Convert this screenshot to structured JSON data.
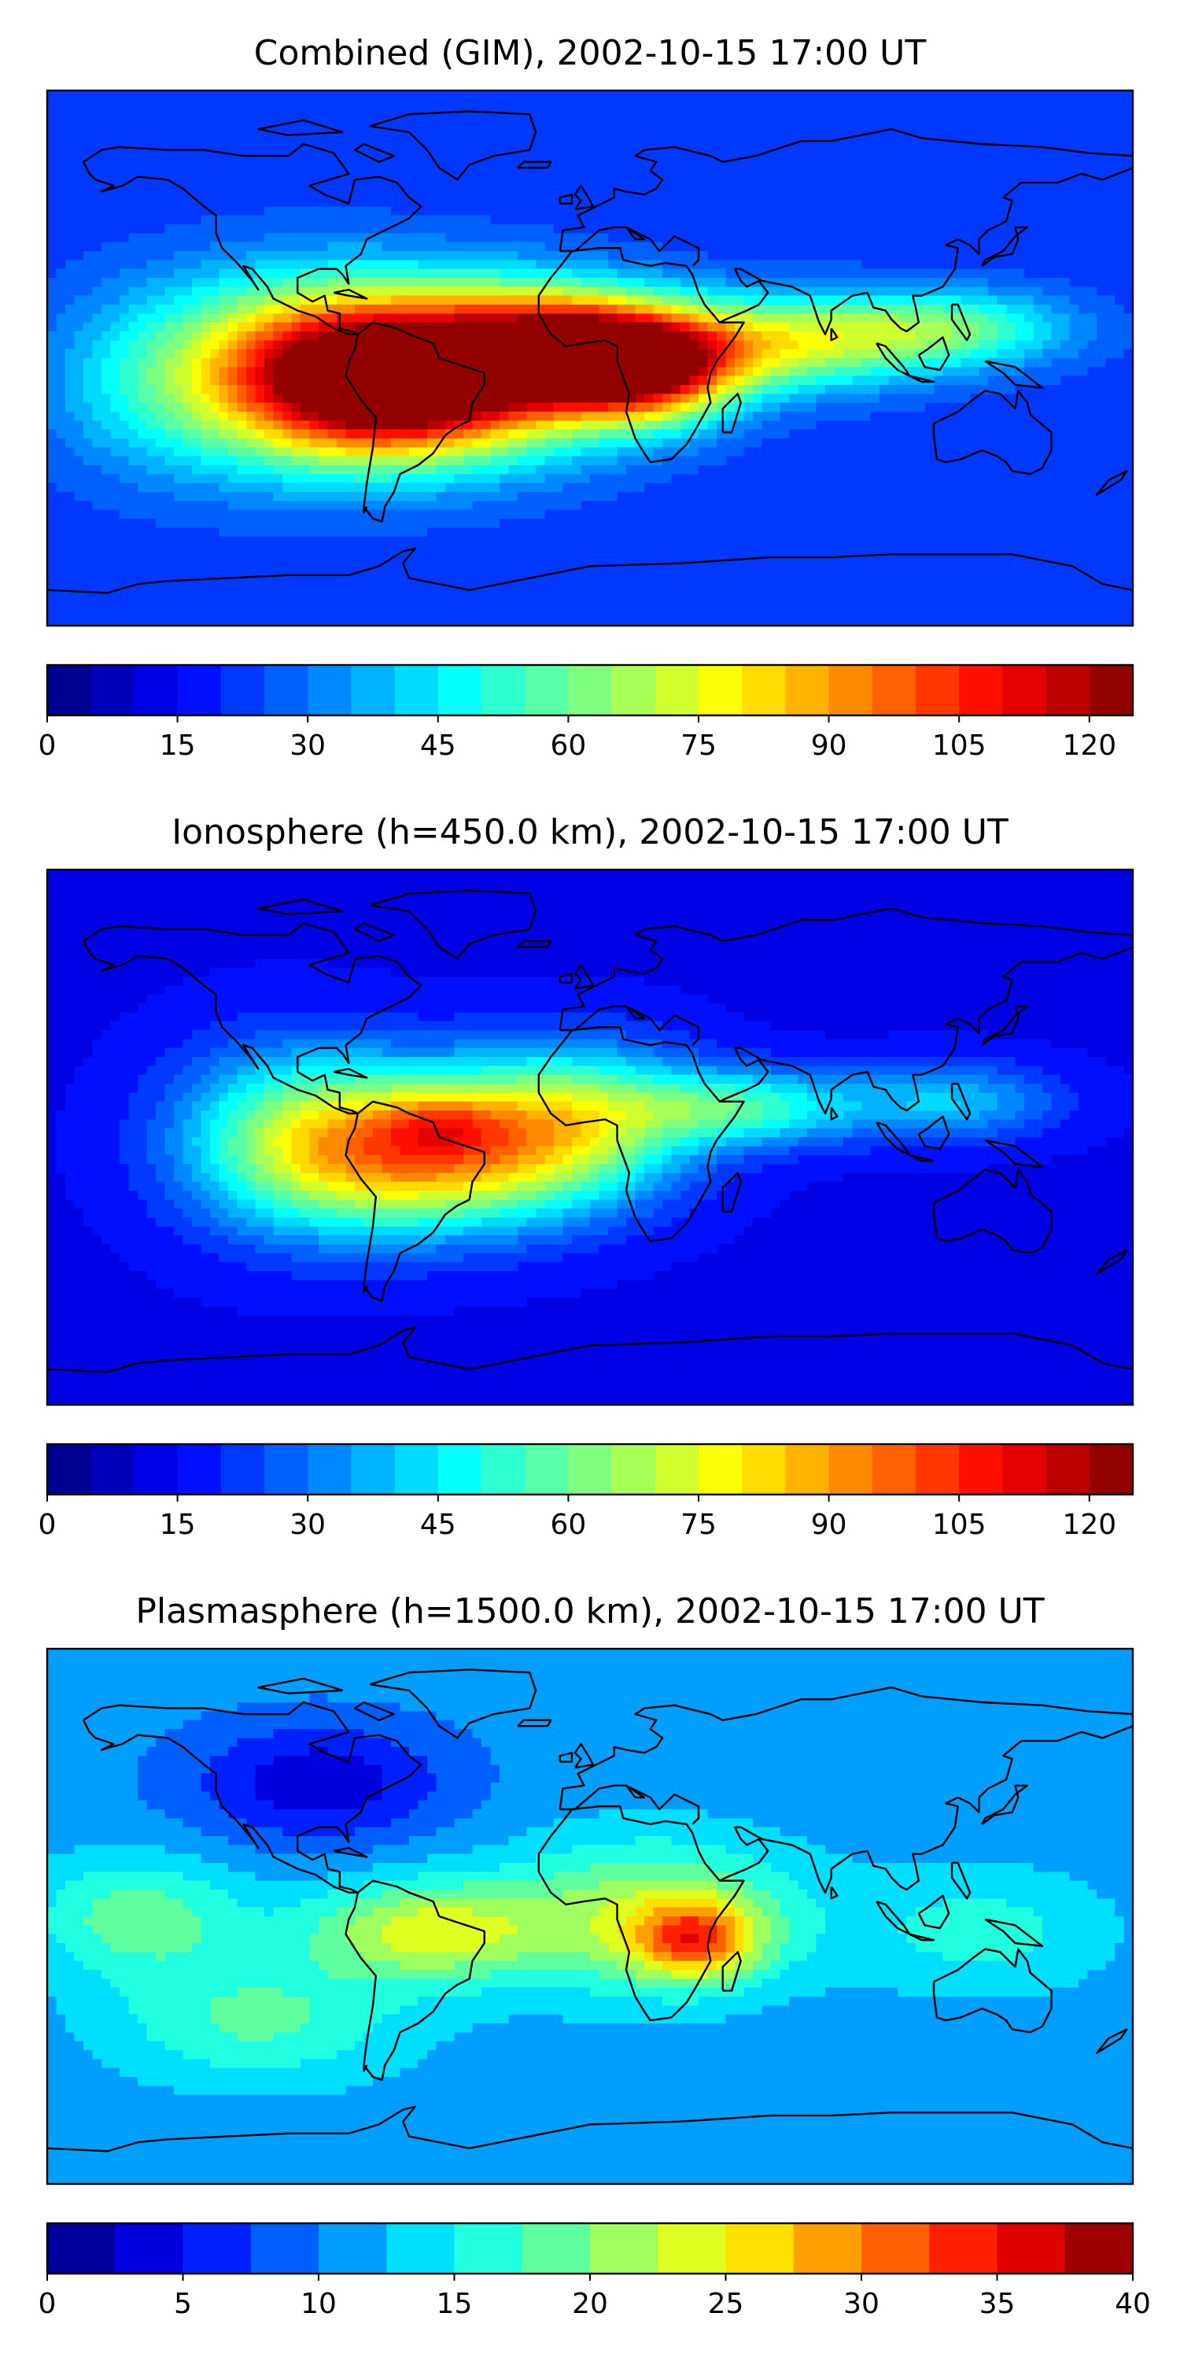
{
  "colormap_stops": [
    "#00007f",
    "#0000ff",
    "#007fff",
    "#00ffff",
    "#7fff7f",
    "#ffff00",
    "#ff7f00",
    "#ff0000",
    "#7f0000"
  ],
  "chart_data": [
    {
      "type": "heatmap",
      "title": "Combined (GIM), 2002-10-15 17:00 UT",
      "colorbar": {
        "range": [
          0,
          125
        ],
        "levels": 25,
        "ticks": [
          0,
          15,
          30,
          45,
          60,
          75,
          90,
          105,
          120
        ]
      },
      "field": {
        "background": 22,
        "peaks": [
          {
            "lon": -52,
            "lat": -5,
            "value": 108,
            "spread_lon": 38,
            "spread_lat": 19
          },
          {
            "lon": -70,
            "lat": -12,
            "value": 20,
            "spread_lon": 22,
            "spread_lat": 14
          },
          {
            "lon": -5,
            "lat": 3,
            "value": 74,
            "spread_lon": 26,
            "spread_lat": 13
          },
          {
            "lon": 20,
            "lat": -5,
            "value": 62,
            "spread_lon": 20,
            "spread_lat": 12
          },
          {
            "lon": -100,
            "lat": -5,
            "value": 50,
            "spread_lon": 32,
            "spread_lat": 22
          },
          {
            "lon": 60,
            "lat": 5,
            "value": 50,
            "spread_lon": 35,
            "spread_lat": 11
          },
          {
            "lon": 120,
            "lat": 10,
            "value": 33,
            "spread_lon": 28,
            "spread_lat": 9
          },
          {
            "lon": -150,
            "lat": -8,
            "value": 15,
            "spread_lon": 25,
            "spread_lat": 22
          }
        ]
      },
      "coastlines": true
    },
    {
      "type": "heatmap",
      "title": "Ionosphere  (h=450.0 km), 2002-10-15 17:00 UT",
      "colorbar": {
        "range": [
          0,
          125
        ],
        "levels": 25,
        "ticks": [
          0,
          15,
          30,
          45,
          60,
          75,
          90,
          105,
          120
        ]
      },
      "field": {
        "background": 14,
        "peaks": [
          {
            "lon": -55,
            "lat": -5,
            "value": 70,
            "spread_lon": 35,
            "spread_lat": 18
          },
          {
            "lon": -50,
            "lat": 5,
            "value": 16,
            "spread_lon": 14,
            "spread_lat": 7
          },
          {
            "lon": -5,
            "lat": 5,
            "value": 45,
            "spread_lon": 28,
            "spread_lat": 18
          },
          {
            "lon": -100,
            "lat": 0,
            "value": 35,
            "spread_lon": 28,
            "spread_lat": 22
          },
          {
            "lon": 50,
            "lat": 10,
            "value": 38,
            "spread_lon": 28,
            "spread_lat": 9
          },
          {
            "lon": 120,
            "lat": 12,
            "value": 25,
            "spread_lon": 25,
            "spread_lat": 9
          }
        ]
      },
      "coastlines": true
    },
    {
      "type": "heatmap",
      "title": "Plasmasphere (h=1500.0 km), 2002-10-15 17:00 UT",
      "colorbar": {
        "range": [
          0,
          40
        ],
        "levels": 16,
        "ticks": [
          0,
          5,
          10,
          15,
          20,
          25,
          30,
          35,
          40
        ]
      },
      "field": {
        "background": 11,
        "peaks": [
          {
            "lon": 35,
            "lat": -8,
            "value": 15,
            "spread_lon": 14,
            "spread_lat": 9
          },
          {
            "lon": 20,
            "lat": 0,
            "value": 11,
            "spread_lon": 35,
            "spread_lat": 18
          },
          {
            "lon": -55,
            "lat": -5,
            "value": 12,
            "spread_lon": 28,
            "spread_lat": 12
          },
          {
            "lon": -150,
            "lat": 0,
            "value": 8,
            "spread_lon": 25,
            "spread_lat": 14
          },
          {
            "lon": -110,
            "lat": -35,
            "value": 7,
            "spread_lon": 35,
            "spread_lat": 15
          },
          {
            "lon": 130,
            "lat": -5,
            "value": 5,
            "spread_lon": 30,
            "spread_lat": 15
          },
          {
            "lon": -90,
            "lat": 45,
            "value": -8,
            "spread_lon": 30,
            "spread_lat": 14
          }
        ]
      },
      "coastlines": true
    }
  ]
}
